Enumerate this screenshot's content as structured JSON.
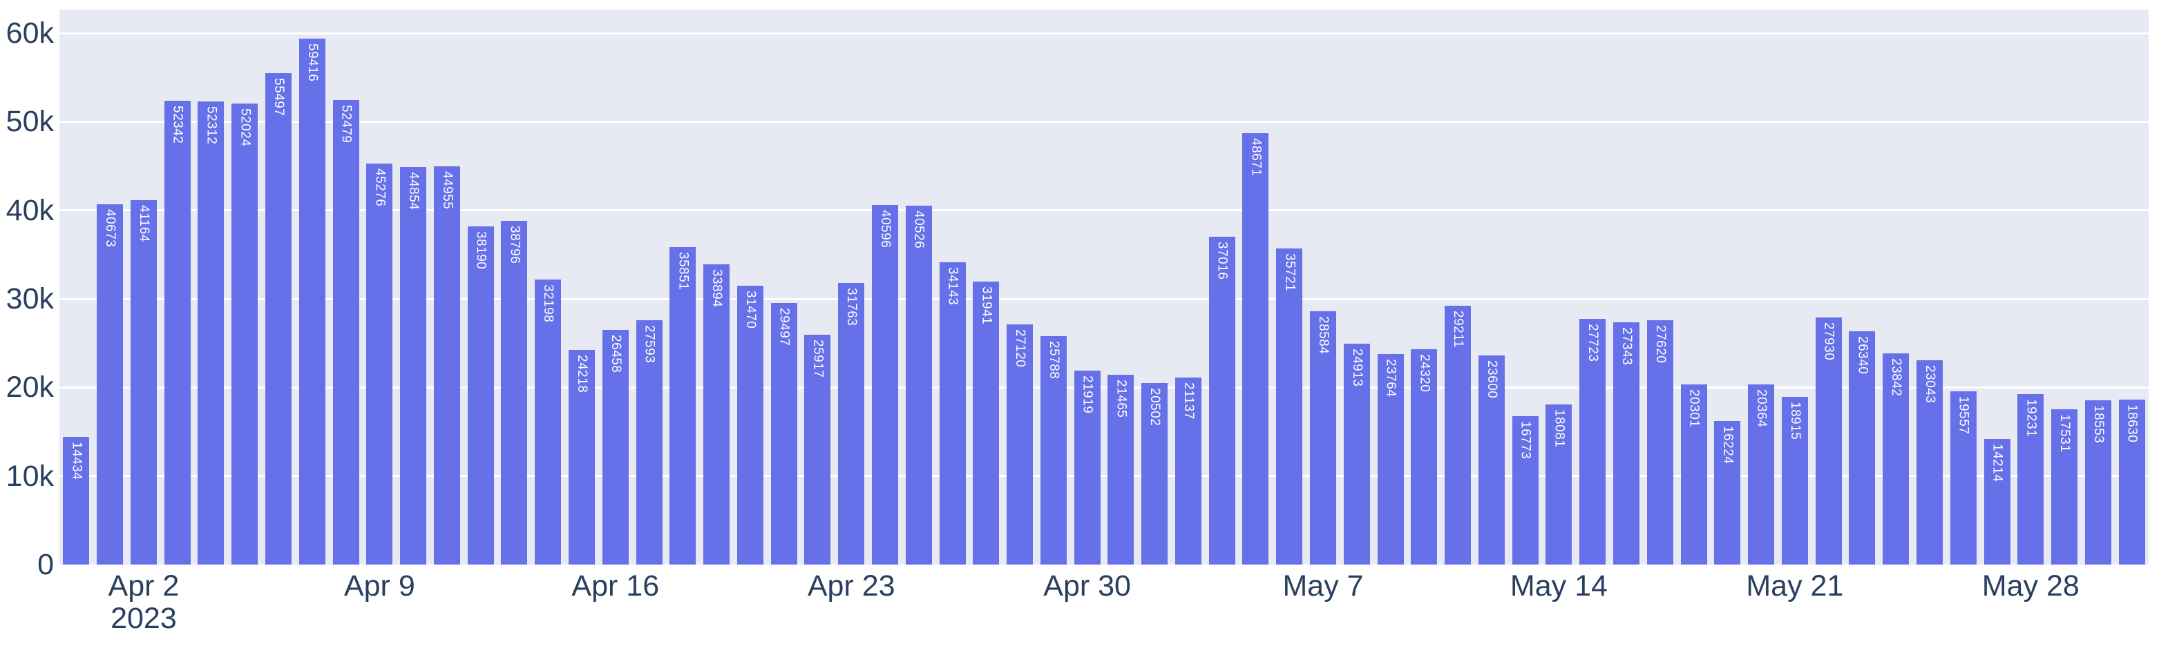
{
  "chart_data": {
    "type": "bar",
    "title": "",
    "xlabel": "",
    "ylabel": "",
    "grid": true,
    "legend": false,
    "ylim": [
      0,
      60000
    ],
    "x_dates": [
      "2023-03-31",
      "2023-04-01",
      "2023-04-02",
      "2023-04-03",
      "2023-04-04",
      "2023-04-05",
      "2023-04-06",
      "2023-04-07",
      "2023-04-08",
      "2023-04-09",
      "2023-04-10",
      "2023-04-11",
      "2023-04-12",
      "2023-04-13",
      "2023-04-14",
      "2023-04-15",
      "2023-04-16",
      "2023-04-17",
      "2023-04-18",
      "2023-04-19",
      "2023-04-20",
      "2023-04-21",
      "2023-04-22",
      "2023-04-23",
      "2023-04-24",
      "2023-04-25",
      "2023-04-26",
      "2023-04-27",
      "2023-04-28",
      "2023-04-29",
      "2023-04-30",
      "2023-05-01",
      "2023-05-02",
      "2023-05-03",
      "2023-05-04",
      "2023-05-05",
      "2023-05-06",
      "2023-05-07",
      "2023-05-08",
      "2023-05-09",
      "2023-05-10",
      "2023-05-11",
      "2023-05-12",
      "2023-05-13",
      "2023-05-14",
      "2023-05-15",
      "2023-05-16",
      "2023-05-17",
      "2023-05-18",
      "2023-05-19",
      "2023-05-20",
      "2023-05-21",
      "2023-05-22",
      "2023-05-23",
      "2023-05-24",
      "2023-05-25",
      "2023-05-26",
      "2023-05-27",
      "2023-05-28",
      "2023-05-29",
      "2023-05-30",
      "2023-05-31"
    ],
    "values": [
      14434,
      40673,
      41164,
      52342,
      52312,
      52024,
      55497,
      59416,
      52479,
      45276,
      44854,
      44955,
      38190,
      38796,
      32198,
      24218,
      26458,
      27593,
      35851,
      33894,
      31470,
      29497,
      25917,
      31763,
      40596,
      40526,
      34143,
      31941,
      27120,
      25788,
      21919,
      21465,
      20502,
      21137,
      37016,
      48671,
      35721,
      28584,
      24913,
      23764,
      24320,
      29211,
      23600,
      16773,
      18081,
      27723,
      27343,
      27620,
      20301,
      16224,
      20364,
      18915,
      27930,
      26340,
      23842,
      23043,
      19557,
      14214,
      19231,
      17531,
      18553,
      18630
    ],
    "bar_value_labels_visible": true,
    "yticks": [
      {
        "value": 0,
        "label": "0"
      },
      {
        "value": 10000,
        "label": "10k"
      },
      {
        "value": 20000,
        "label": "20k"
      },
      {
        "value": 30000,
        "label": "30k"
      },
      {
        "value": 40000,
        "label": "40k"
      },
      {
        "value": 50000,
        "label": "50k"
      },
      {
        "value": 60000,
        "label": "60k"
      }
    ],
    "xticks": [
      {
        "index": 2,
        "label": "Apr 2",
        "sublabel": "2023"
      },
      {
        "index": 9,
        "label": "Apr 9"
      },
      {
        "index": 16,
        "label": "Apr 16"
      },
      {
        "index": 23,
        "label": "Apr 23"
      },
      {
        "index": 30,
        "label": "Apr 30"
      },
      {
        "index": 37,
        "label": "May 7"
      },
      {
        "index": 44,
        "label": "May 14"
      },
      {
        "index": 51,
        "label": "May 21"
      },
      {
        "index": 58,
        "label": "May 28"
      }
    ],
    "colors": {
      "bar": "#6670e8",
      "plot_bg": "#e7eaf3",
      "grid": "#ffffff",
      "tick_text": "#2a3f5f",
      "bar_label": "#ffffff",
      "paper_bg": "#ffffff"
    }
  }
}
